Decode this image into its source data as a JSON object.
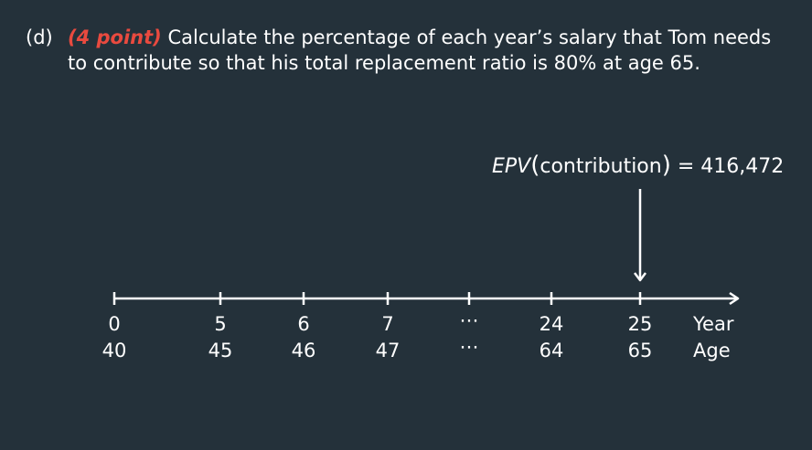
{
  "question": {
    "label": "(d)",
    "points": "(4 point)",
    "text": "Calculate the percentage of each year’s salary that Tom needs to contribute so that his total replacement ratio is 80% at age 65."
  },
  "annotation": {
    "lhs": "EPV",
    "open": "(",
    "arg": "contribution",
    "close": ")",
    "rhs": " = 416,472"
  },
  "timeline": {
    "years": [
      "0",
      "5",
      "6",
      "7",
      "⋯",
      "24",
      "25"
    ],
    "ages": [
      "40",
      "45",
      "46",
      "47",
      "⋯",
      "64",
      "65"
    ],
    "row_labels": {
      "year": "Year",
      "age": "Age"
    },
    "marked_year": "25"
  }
}
